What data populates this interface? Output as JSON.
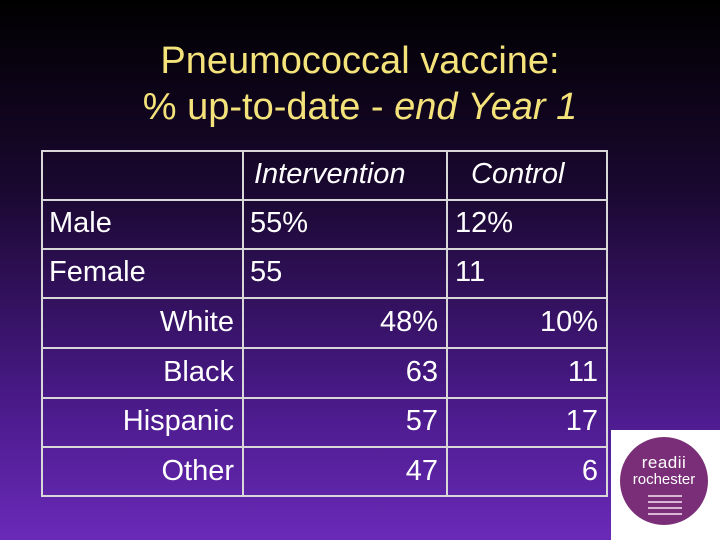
{
  "title": {
    "line1": "Pneumococcal vaccine:",
    "line2_prefix": "% up-to-date - ",
    "line2_emphasis": "end Year 1"
  },
  "table": {
    "headers": {
      "intervention": "Intervention",
      "control": "Control"
    },
    "rows": [
      {
        "label": "Male",
        "intervention": "55%",
        "control": "12%"
      },
      {
        "label": "Female",
        "intervention": "55",
        "control": "11"
      }
    ],
    "subrows": [
      {
        "label": "White",
        "intervention": "48%",
        "control": "10%"
      },
      {
        "label": "Black",
        "intervention": "63",
        "control": "11"
      },
      {
        "label": "Hispanic",
        "intervention": "57",
        "control": "17"
      },
      {
        "label": "Other",
        "intervention": "47",
        "control": "6"
      }
    ]
  },
  "logo": {
    "word1": "readii",
    "word2": "rochester"
  },
  "colors": {
    "title": "#f4e27a",
    "text": "#ffffff",
    "logo": "#7a2e78"
  }
}
